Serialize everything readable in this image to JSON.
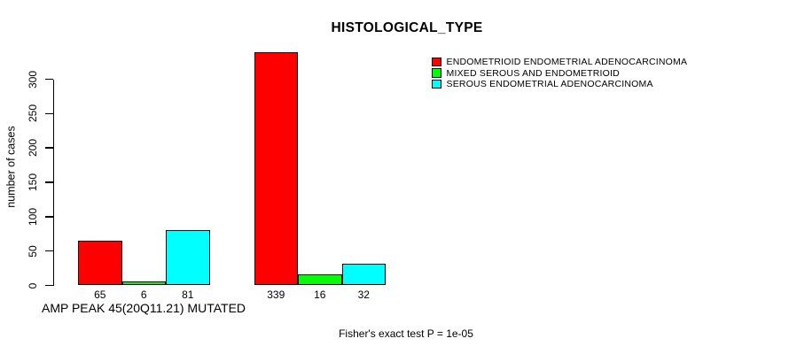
{
  "chart_data": {
    "type": "bar",
    "title": "HISTOLOGICAL_TYPE",
    "ylabel": "number of cases",
    "xlabel": "AMP PEAK 45(20Q11.21) MUTATED",
    "annotation": "Fisher's exact test P = 1e-05",
    "ylim": [
      0,
      339
    ],
    "y_ticks": [
      0,
      50,
      100,
      150,
      200,
      250,
      300
    ],
    "grid": false,
    "legend_position": "top-right",
    "categories": [
      "group-1",
      "group-2"
    ],
    "series": [
      {
        "name": "ENDOMETRIOID ENDOMETRIAL ADENOCARCINOMA",
        "color": "#ff0000",
        "values": [
          65,
          339
        ]
      },
      {
        "name": "MIXED SEROUS AND ENDOMETRIOID",
        "color": "#00ff00",
        "values": [
          6,
          16
        ]
      },
      {
        "name": "SEROUS ENDOMETRIAL ADENOCARCINOMA",
        "color": "#00ffff",
        "values": [
          81,
          32
        ]
      }
    ],
    "bar_value_labels": [
      [
        "65",
        "6",
        "81"
      ],
      [
        "339",
        "16",
        "32"
      ]
    ]
  }
}
